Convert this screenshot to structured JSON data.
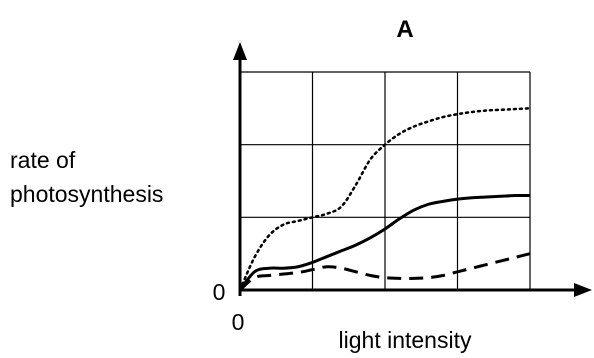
{
  "chart_data": {
    "type": "line",
    "title": "A",
    "xlabel": "light intensity",
    "ylabel_lines": [
      "rate of",
      "photosynthesis"
    ],
    "x_origin_label": "0",
    "y_origin_label": "0",
    "grid": true,
    "x_range": [
      0,
      4
    ],
    "y_range": [
      0,
      3
    ],
    "series": [
      {
        "style": "dotted",
        "x": [
          0,
          0.2,
          0.4,
          0.6,
          0.8,
          1.0,
          1.2,
          1.4,
          1.6,
          1.8,
          2.0,
          2.2,
          2.4,
          2.6,
          2.8,
          3.0,
          3.2,
          3.4,
          3.6,
          3.8,
          4.0
        ],
        "values": [
          0,
          0.45,
          0.75,
          0.9,
          0.95,
          1.0,
          1.05,
          1.15,
          1.45,
          1.8,
          2.0,
          2.15,
          2.25,
          2.32,
          2.38,
          2.42,
          2.45,
          2.47,
          2.48,
          2.49,
          2.5
        ]
      },
      {
        "style": "solid",
        "x": [
          0,
          0.2,
          0.4,
          0.6,
          0.8,
          1.0,
          1.2,
          1.4,
          1.6,
          1.8,
          2.0,
          2.2,
          2.4,
          2.6,
          2.8,
          3.0,
          3.2,
          3.4,
          3.6,
          3.8,
          4.0
        ],
        "values": [
          0,
          0.25,
          0.3,
          0.3,
          0.32,
          0.38,
          0.46,
          0.54,
          0.62,
          0.72,
          0.84,
          0.98,
          1.1,
          1.18,
          1.22,
          1.25,
          1.27,
          1.28,
          1.29,
          1.3,
          1.3
        ]
      },
      {
        "style": "dashed",
        "x": [
          0,
          0.2,
          0.4,
          0.6,
          0.8,
          1.0,
          1.2,
          1.4,
          1.6,
          1.8,
          2.0,
          2.2,
          2.4,
          2.6,
          2.8,
          3.0,
          3.2,
          3.4,
          3.6,
          3.8,
          4.0
        ],
        "values": [
          0,
          0.17,
          0.2,
          0.22,
          0.24,
          0.28,
          0.32,
          0.3,
          0.25,
          0.2,
          0.17,
          0.16,
          0.16,
          0.17,
          0.2,
          0.25,
          0.3,
          0.35,
          0.4,
          0.45,
          0.5
        ]
      }
    ],
    "colors": {
      "line": "#000000",
      "grid": "#000000",
      "background": "#ffffff"
    }
  }
}
